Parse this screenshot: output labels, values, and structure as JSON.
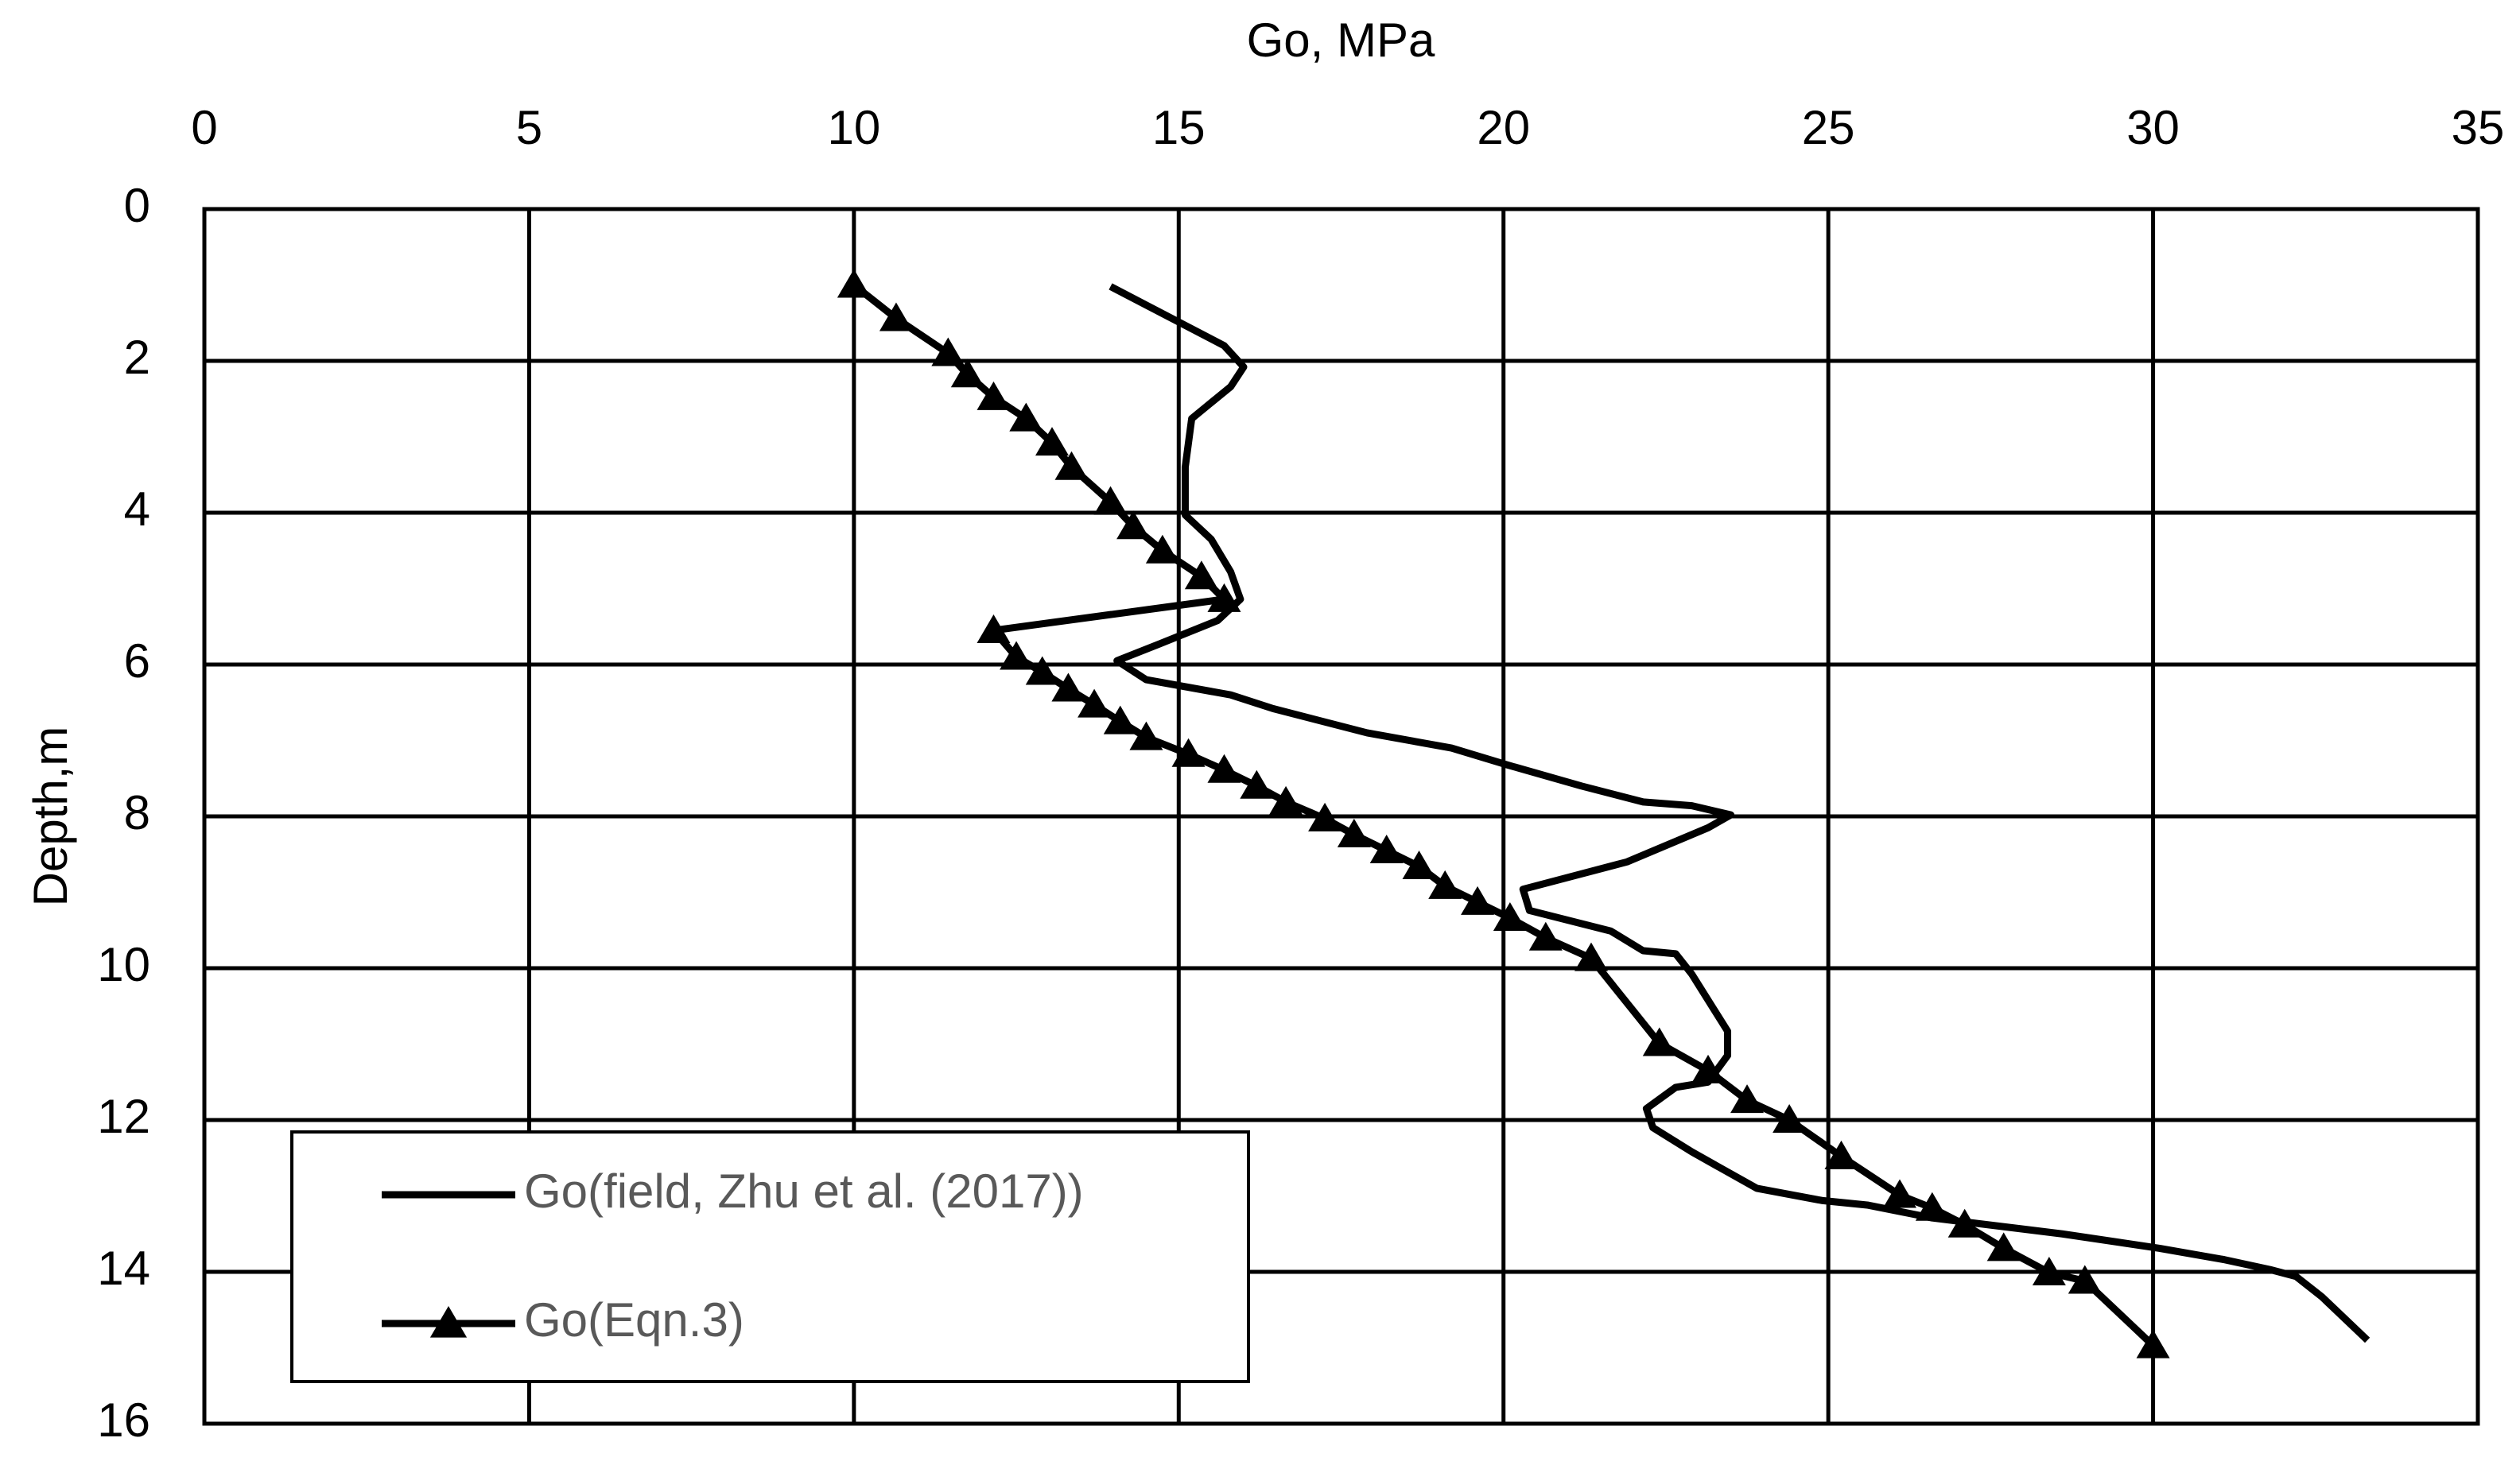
{
  "chart_data": {
    "type": "line",
    "xlabel": "Go, MPa",
    "ylabel": "Depth,m",
    "xlim": [
      0,
      35
    ],
    "xticks": [
      0,
      5,
      10,
      15,
      20,
      25,
      30,
      35
    ],
    "ylim": [
      0,
      16
    ],
    "yticks": [
      0,
      2,
      4,
      6,
      8,
      10,
      12,
      14,
      16
    ],
    "y_inverted": true,
    "x_axis_position": "top",
    "grid": true,
    "legend": "lower left",
    "series": [
      {
        "name": "Go(field, Zhu et al. (2017))",
        "color": "#000000",
        "marker": "none",
        "x": [
          13.95,
          15.7,
          16.0,
          15.8,
          15.2,
          15.1,
          15.1,
          15.5,
          15.8,
          15.95,
          15.6,
          14.7,
          14.05,
          14.5,
          15.8,
          16.45,
          17.9,
          19.2,
          20.05,
          21.2,
          22.15,
          22.9,
          23.5,
          23.15,
          21.9,
          20.3,
          20.4,
          21.65,
          22.15,
          22.65,
          22.9,
          23.45,
          23.45,
          23.15,
          22.65,
          22.2,
          22.3,
          22.9,
          23.9,
          24.9,
          25.6,
          26.6,
          28.6,
          30.1,
          31.1,
          31.8,
          32.2,
          32.6,
          33.3
        ],
        "y": [
          1.02,
          1.8,
          2.08,
          2.34,
          2.76,
          3.4,
          4.03,
          4.35,
          4.78,
          5.14,
          5.42,
          5.73,
          5.95,
          6.2,
          6.4,
          6.58,
          6.9,
          7.1,
          7.32,
          7.6,
          7.81,
          7.86,
          7.98,
          8.15,
          8.6,
          8.96,
          9.24,
          9.51,
          9.77,
          9.81,
          10.08,
          10.83,
          11.15,
          11.5,
          11.57,
          11.85,
          12.1,
          12.42,
          12.9,
          13.06,
          13.12,
          13.29,
          13.5,
          13.69,
          13.84,
          13.97,
          14.06,
          14.33,
          14.9
        ]
      },
      {
        "name": "Go(Eqn.3)",
        "color": "#000000",
        "marker": "triangle",
        "x": [
          10.0,
          10.65,
          11.45,
          11.75,
          12.15,
          12.65,
          13.05,
          13.35,
          13.95,
          14.3,
          14.75,
          15.35,
          15.7,
          12.15,
          12.5,
          12.9,
          13.3,
          13.7,
          14.1,
          14.5,
          15.15,
          15.7,
          16.2,
          16.65,
          17.25,
          17.7,
          18.2,
          18.7,
          19.1,
          19.6,
          20.1,
          20.65,
          21.35,
          22.4,
          23.15,
          23.75,
          24.4,
          25.2,
          26.1,
          26.6,
          27.1,
          27.7,
          28.4,
          28.95,
          30.0
        ],
        "y": [
          1.0,
          1.44,
          1.9,
          2.18,
          2.48,
          2.76,
          3.08,
          3.4,
          3.86,
          4.18,
          4.5,
          4.84,
          5.14,
          5.55,
          5.9,
          6.1,
          6.32,
          6.53,
          6.75,
          6.96,
          7.18,
          7.39,
          7.6,
          7.81,
          8.03,
          8.24,
          8.45,
          8.66,
          8.92,
          9.13,
          9.34,
          9.6,
          9.87,
          10.99,
          11.35,
          11.74,
          12.0,
          12.48,
          12.99,
          13.16,
          13.38,
          13.69,
          14.01,
          14.12,
          14.97
        ]
      }
    ]
  }
}
